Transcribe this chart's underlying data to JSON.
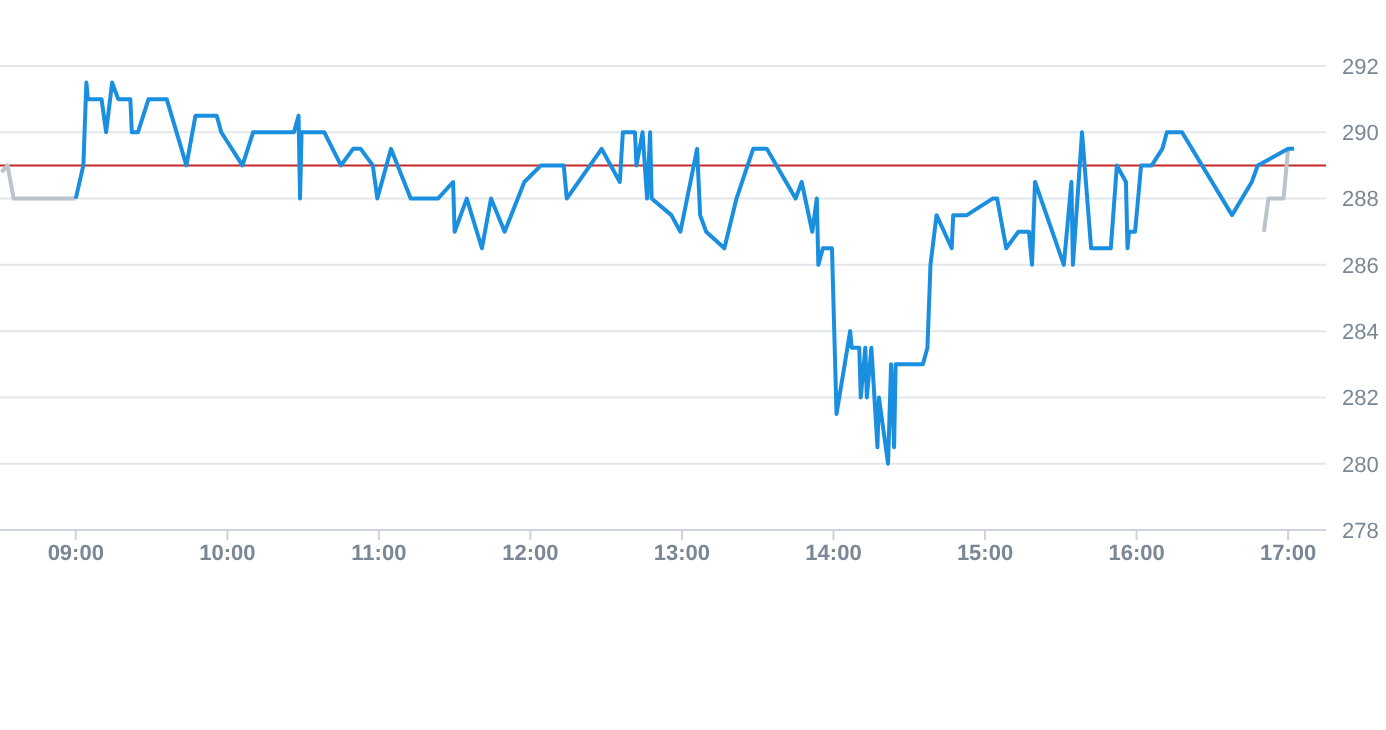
{
  "chart_data": {
    "type": "line",
    "xlim": [
      8.5,
      17.25
    ],
    "xticks": [
      {
        "value": 9,
        "label": "09:00"
      },
      {
        "value": 10,
        "label": "10:00"
      },
      {
        "value": 11,
        "label": "11:00"
      },
      {
        "value": 12,
        "label": "12:00"
      },
      {
        "value": 13,
        "label": "13:00"
      },
      {
        "value": 14,
        "label": "14:00"
      },
      {
        "value": 15,
        "label": "15:00"
      },
      {
        "value": 16,
        "label": "16:00"
      },
      {
        "value": 17,
        "label": "17:00"
      }
    ],
    "ylim": [
      278,
      292
    ],
    "yticks": [
      278,
      280,
      282,
      284,
      286,
      288,
      290,
      292
    ],
    "grid": "y",
    "marker": "none",
    "ref_lines": [
      {
        "axis": "y",
        "value": 289,
        "color": "#c62828"
      }
    ],
    "series": [
      {
        "color": "#bcc3ca",
        "x": [
          8.51,
          8.55,
          8.59,
          9.0
        ],
        "values": [
          288.8,
          289,
          288,
          288
        ]
      },
      {
        "color": "#bcc3ca",
        "x": [
          16.84,
          16.87,
          16.97,
          17.0
        ],
        "values": [
          287,
          288,
          288,
          289.5
        ]
      },
      {
        "color": "#1a8fe0",
        "x": [
          9.0,
          9.05,
          9.07,
          9.08,
          9.17,
          9.2,
          9.24,
          9.28,
          9.36,
          9.37,
          9.41,
          9.48,
          9.6,
          9.73,
          9.79,
          9.93,
          9.96,
          10.1,
          10.17,
          10.44,
          10.47,
          10.48,
          10.49,
          10.64,
          10.75,
          10.83,
          10.88,
          10.96,
          10.99,
          11.08,
          11.21,
          11.39,
          11.49,
          11.5,
          11.58,
          11.68,
          11.74,
          11.83,
          11.96,
          12.07,
          12.22,
          12.24,
          12.47,
          12.59,
          12.61,
          12.69,
          12.7,
          12.74,
          12.77,
          12.79,
          12.8,
          12.93,
          12.99,
          13.1,
          13.12,
          13.16,
          13.28,
          13.36,
          13.47,
          13.56,
          13.75,
          13.79,
          13.86,
          13.89,
          13.9,
          13.93,
          13.99,
          14.02,
          14.11,
          14.12,
          14.17,
          14.18,
          14.21,
          14.22,
          14.25,
          14.29,
          14.3,
          14.36,
          14.38,
          14.4,
          14.41,
          14.57,
          14.59,
          14.62,
          14.64,
          14.68,
          14.78,
          14.79,
          14.88,
          15.05,
          15.08,
          15.14,
          15.22,
          15.29,
          15.31,
          15.33,
          15.52,
          15.57,
          15.58,
          15.64,
          15.7,
          15.83,
          15.87,
          15.93,
          15.94,
          15.95,
          15.99,
          16.03,
          16.1,
          16.17,
          16.2,
          16.3,
          16.63,
          16.76,
          16.8,
          17.0,
          17.04
        ],
        "values": [
          288,
          289,
          291.5,
          291,
          291,
          290,
          291.5,
          291,
          291,
          290,
          290,
          291,
          291,
          289,
          290.5,
          290.5,
          290,
          289,
          290,
          290,
          290.5,
          288,
          290,
          290,
          289,
          289.5,
          289.5,
          289,
          288,
          289.5,
          288,
          288,
          288.5,
          287,
          288,
          286.5,
          288,
          287,
          288.5,
          289,
          289,
          288,
          289.5,
          288.5,
          290,
          290,
          289,
          290,
          288,
          290,
          288,
          287.5,
          287,
          289.5,
          287.5,
          287,
          286.5,
          288,
          289.5,
          289.5,
          288,
          288.5,
          287,
          288,
          286,
          286.5,
          286.5,
          281.5,
          284,
          283.5,
          283.5,
          282,
          283.5,
          282,
          283.5,
          280.5,
          282,
          280,
          283,
          280.5,
          283,
          283,
          283,
          283.5,
          286,
          287.5,
          286.5,
          287.5,
          287.5,
          288,
          288,
          286.5,
          287,
          287,
          286,
          288.5,
          286,
          288.5,
          286,
          290,
          286.5,
          286.5,
          289,
          288.5,
          286.5,
          287,
          287,
          289,
          289,
          289.5,
          290,
          290,
          287.5,
          288.5,
          289,
          289.5,
          289.5
        ]
      }
    ]
  }
}
